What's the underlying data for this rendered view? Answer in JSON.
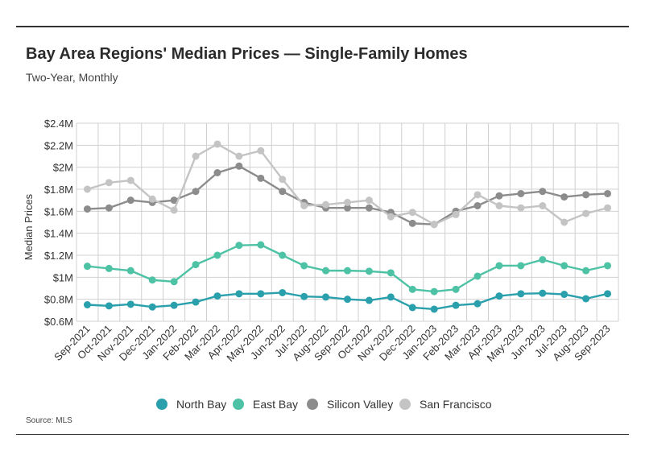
{
  "title": "Bay Area Regions' Median Prices — Single-Family Homes",
  "subtitle": "Two-Year, Monthly",
  "source": "Source:  MLS",
  "chart_data": {
    "type": "line",
    "ylabel": "Median Prices",
    "xlabel": "",
    "ylim": [
      600000,
      2400000
    ],
    "yticks": [
      600000,
      800000,
      1000000,
      1200000,
      1400000,
      1600000,
      1800000,
      2000000,
      2200000,
      2400000
    ],
    "ytick_labels": [
      "$0.6M",
      "$0.8M",
      "$1M",
      "$1.2M",
      "$1.4M",
      "$1.6M",
      "$1.8M",
      "$2M",
      "$2.2M",
      "$2.4M"
    ],
    "categories": [
      "Sep-2021",
      "Oct-2021",
      "Nov-2021",
      "Dec-2021",
      "Jan-2022",
      "Feb-2022",
      "Mar-2022",
      "Apr-2022",
      "May-2022",
      "Jun-2022",
      "Jul-2022",
      "Aug-2022",
      "Sep-2022",
      "Oct-2022",
      "Nov-2022",
      "Dec-2022",
      "Jan-2023",
      "Feb-2023",
      "Mar-2023",
      "Apr-2023",
      "May-2023",
      "Jun-2023",
      "Jul-2023",
      "Aug-2023",
      "Sep-2023"
    ],
    "grid": true,
    "legend_position": "bottom-center",
    "series": [
      {
        "name": "North Bay",
        "color": "#2aa0ad",
        "values": [
          750000,
          740000,
          755000,
          730000,
          745000,
          775000,
          830000,
          850000,
          850000,
          860000,
          825000,
          820000,
          800000,
          790000,
          820000,
          725000,
          710000,
          745000,
          760000,
          830000,
          850000,
          855000,
          845000,
          805000,
          850000
        ]
      },
      {
        "name": "East Bay",
        "color": "#4ec2a5",
        "values": [
          1100000,
          1080000,
          1060000,
          975000,
          960000,
          1115000,
          1200000,
          1290000,
          1295000,
          1200000,
          1105000,
          1060000,
          1060000,
          1055000,
          1040000,
          890000,
          870000,
          890000,
          1010000,
          1105000,
          1105000,
          1160000,
          1105000,
          1060000,
          1105000
        ]
      },
      {
        "name": "Silicon Valley",
        "color": "#8c8c8c",
        "values": [
          1620000,
          1630000,
          1700000,
          1680000,
          1700000,
          1780000,
          1950000,
          2010000,
          1900000,
          1780000,
          1680000,
          1630000,
          1630000,
          1630000,
          1590000,
          1490000,
          1480000,
          1600000,
          1650000,
          1740000,
          1760000,
          1780000,
          1730000,
          1750000,
          1760000
        ]
      },
      {
        "name": "San Francisco",
        "color": "#c4c4c4",
        "values": [
          1800000,
          1860000,
          1880000,
          1710000,
          1610000,
          2100000,
          2210000,
          2100000,
          2150000,
          1890000,
          1650000,
          1660000,
          1680000,
          1700000,
          1550000,
          1590000,
          1480000,
          1570000,
          1750000,
          1650000,
          1630000,
          1650000,
          1500000,
          1580000,
          1630000
        ]
      }
    ]
  }
}
